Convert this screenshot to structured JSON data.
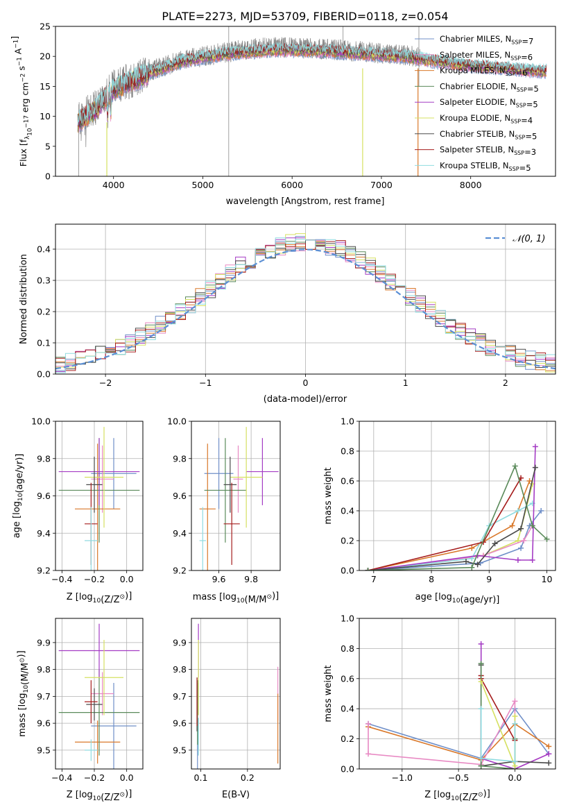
{
  "chart_data": [
    {
      "type": "line",
      "title": "PLATE=2273, MJD=53709, FIBERID=0118, z=0.054",
      "xlabel": "wavelength [Angstrom, rest frame]",
      "ylabel_parts": [
        "Flux [f",
        "λ",
        "10",
        "−17",
        " erg cm",
        "−2",
        " s",
        "−1",
        " A",
        "−1",
        "]"
      ],
      "xlim": [
        3350,
        8950
      ],
      "ylim": [
        0,
        25
      ],
      "xticks": [
        4000,
        5000,
        6000,
        7000,
        8000
      ],
      "yticks": [
        0,
        5,
        10,
        15,
        20,
        25
      ],
      "legend_position": "right",
      "series": [
        {
          "name_parts": [
            "Chabrier MILES, N",
            "SSP",
            "=7"
          ],
          "color": "#6f8fc8"
        },
        {
          "name_parts": [
            "Salpeter MILES, N",
            "SSP",
            "=6"
          ],
          "color": "#e889c3"
        },
        {
          "name_parts": [
            "Kroupa MILES, N",
            "SSP",
            "=6"
          ],
          "color": "#d9782a"
        },
        {
          "name_parts": [
            "Chabrier ELODIE, N",
            "SSP",
            "=5"
          ],
          "color": "#5a8a5a"
        },
        {
          "name_parts": [
            "Salpeter ELODIE, N",
            "SSP",
            "=5"
          ],
          "color": "#a43bc4"
        },
        {
          "name_parts": [
            "Kroupa ELODIE, N",
            "SSP",
            "=4"
          ],
          "color": "#d5e060"
        },
        {
          "name_parts": [
            "Chabrier STELIB, N",
            "SSP",
            "=5"
          ],
          "color": "#4a4a4a"
        },
        {
          "name_parts": [
            "Salpeter STELIB, N",
            "SSP",
            "=3"
          ],
          "color": "#a51c1c"
        },
        {
          "name_parts": [
            "Kroupa STELIB, N",
            "SSP",
            "=5"
          ],
          "color": "#8fdbe0"
        }
      ],
      "data_color": "#808080",
      "spectrum_continuum": {
        "x": [
          3600,
          3800,
          4000,
          4200,
          4400,
          4600,
          4800,
          5000,
          5200,
          5400,
          5600,
          5800,
          6000,
          6200,
          6400,
          6600,
          6800,
          7000,
          7200,
          7400,
          7430
        ],
        "y": [
          9.5,
          11.5,
          15.0,
          16.0,
          17.5,
          18.5,
          19.5,
          20.0,
          20.5,
          21.0,
          21.3,
          21.5,
          21.5,
          21.3,
          21.2,
          21.0,
          20.8,
          20.5,
          20.3,
          20.0,
          20.0
        ]
      },
      "model_continuum": {
        "x": [
          3600,
          3800,
          4000,
          4200,
          4400,
          4600,
          4800,
          5000,
          5200,
          5400,
          5600,
          5800,
          6000,
          6200,
          6400,
          6600,
          6800,
          7000,
          7200,
          7400,
          7600,
          7800,
          8000,
          8200,
          8400,
          8600,
          8800
        ],
        "y": [
          9.0,
          11.0,
          14.5,
          15.8,
          17.2,
          18.2,
          19.2,
          19.8,
          20.2,
          20.6,
          20.8,
          21.0,
          21.0,
          20.9,
          20.8,
          20.6,
          20.4,
          20.2,
          20.0,
          19.6,
          19.2,
          18.8,
          18.4,
          18.2,
          18.0,
          17.7,
          17.5
        ]
      }
    },
    {
      "type": "histogram",
      "xlabel": "(data-model)/error",
      "ylabel": "Normed distribution",
      "xlim": [
        -2.5,
        2.5
      ],
      "ylim": [
        0,
        0.48
      ],
      "xticks": [
        -2,
        -1,
        0,
        1,
        2
      ],
      "yticks": [
        0.0,
        0.1,
        0.2,
        0.3,
        0.4
      ],
      "legend_label": "𝒩(0, 1)",
      "legend_position": "top-right",
      "gaussian": {
        "mean": 0,
        "sigma": 1,
        "color": "#5b8fd4"
      },
      "bin_width": 0.1,
      "bin_start": -2.5,
      "series_colors": [
        "#6f8fc8",
        "#e889c3",
        "#d9782a",
        "#5a8a5a",
        "#a43bc4",
        "#d5e060",
        "#4a4a4a",
        "#a51c1c",
        "#8fdbe0"
      ]
    },
    {
      "type": "scatter",
      "panel": "age-vs-Z",
      "xlabel_parts": [
        "Z [log",
        "10",
        "(Z/Z",
        "⊙",
        ")]"
      ],
      "ylabel_parts": [
        "age  [log",
        "10",
        "(age/yr)]"
      ],
      "xlim": [
        -0.44,
        0.1
      ],
      "ylim": [
        9.2,
        10.0
      ],
      "xticks": [
        -0.4,
        -0.2,
        0.0
      ],
      "yticks": [
        9.2,
        9.4,
        9.6,
        9.8,
        10.0
      ],
      "points": [
        {
          "x": -0.08,
          "y": 9.72,
          "xerr": 0.14,
          "yerr": 0.19,
          "color": "#6f8fc8"
        },
        {
          "x": -0.15,
          "y": 9.69,
          "xerr": 0.07,
          "yerr": 0.18,
          "color": "#e889c3"
        },
        {
          "x": -0.18,
          "y": 9.53,
          "xerr": 0.14,
          "yerr": 0.35,
          "color": "#d9782a"
        },
        {
          "x": -0.17,
          "y": 9.63,
          "xerr": 0.25,
          "yerr": 0.28,
          "color": "#5a8a5a"
        },
        {
          "x": -0.17,
          "y": 9.73,
          "xerr": 0.25,
          "yerr": 0.18,
          "color": "#a43bc4"
        },
        {
          "x": -0.14,
          "y": 9.7,
          "xerr": 0.12,
          "yerr": 0.27,
          "color": "#d5e060"
        },
        {
          "x": -0.2,
          "y": 9.66,
          "xerr": 0.05,
          "yerr": 0.15,
          "color": "#4a4a4a"
        },
        {
          "x": -0.22,
          "y": 9.45,
          "xerr": 0.04,
          "yerr": 0.22,
          "color": "#a51c1c"
        },
        {
          "x": -0.22,
          "y": 9.36,
          "xerr": 0.04,
          "yerr": 0.18,
          "color": "#8fdbe0"
        }
      ]
    },
    {
      "type": "scatter",
      "panel": "age-vs-mass",
      "xlabel_parts": [
        "mass [log",
        "10",
        "(M/M",
        "⊙",
        ")]"
      ],
      "xlim": [
        9.43,
        9.98
      ],
      "ylim": [
        9.2,
        10.0
      ],
      "xticks": [
        9.6,
        9.8
      ],
      "yticks": [
        9.2,
        9.4,
        9.6,
        9.8,
        10.0
      ],
      "points": [
        {
          "x": 9.6,
          "y": 9.72,
          "xerr": 0.09,
          "yerr": 0.19,
          "color": "#6f8fc8"
        },
        {
          "x": 9.72,
          "y": 9.69,
          "xerr": 0.03,
          "yerr": 0.18,
          "color": "#e889c3"
        },
        {
          "x": 9.53,
          "y": 9.53,
          "xerr": 0.05,
          "yerr": 0.35,
          "color": "#d9782a"
        },
        {
          "x": 9.64,
          "y": 9.63,
          "xerr": 0.13,
          "yerr": 0.28,
          "color": "#5a8a5a"
        },
        {
          "x": 9.87,
          "y": 9.73,
          "xerr": 0.1,
          "yerr": 0.18,
          "color": "#a43bc4"
        },
        {
          "x": 9.77,
          "y": 9.7,
          "xerr": 0.1,
          "yerr": 0.27,
          "color": "#d5e060"
        },
        {
          "x": 9.67,
          "y": 9.66,
          "xerr": 0.04,
          "yerr": 0.15,
          "color": "#4a4a4a"
        },
        {
          "x": 9.68,
          "y": 9.45,
          "xerr": 0.05,
          "yerr": 0.22,
          "color": "#a51c1c"
        },
        {
          "x": 9.5,
          "y": 9.36,
          "xerr": 0.02,
          "yerr": 0.18,
          "color": "#8fdbe0"
        }
      ]
    },
    {
      "type": "line",
      "panel": "mass-weight-vs-age",
      "xlabel_parts": [
        "age  [log",
        "10",
        "(age/yr)]"
      ],
      "ylabel": "mass weight",
      "xlim": [
        6.75,
        10.15
      ],
      "ylim": [
        0,
        1.0
      ],
      "xticks": [
        7,
        8,
        9,
        10
      ],
      "yticks": [
        0.0,
        0.2,
        0.4,
        0.6,
        0.8,
        1.0
      ],
      "series": [
        {
          "color": "#d5e060",
          "x": [
            6.9,
            8.9,
            9.5,
            9.75
          ],
          "y": [
            0.0,
            0.1,
            0.2,
            0.58
          ]
        },
        {
          "color": "#d9782a",
          "x": [
            6.9,
            8.7,
            9.4,
            9.7
          ],
          "y": [
            0.0,
            0.15,
            0.3,
            0.6
          ]
        },
        {
          "color": "#6f8fc8",
          "x": [
            6.9,
            8.85,
            9.55,
            9.7,
            9.9
          ],
          "y": [
            0.0,
            0.05,
            0.15,
            0.3,
            0.4
          ]
        },
        {
          "color": "#e889c3",
          "x": [
            6.9,
            8.9,
            9.6,
            9.75
          ],
          "y": [
            0.0,
            0.1,
            0.2,
            0.3
          ]
        },
        {
          "color": "#8fdbe0",
          "x": [
            6.9,
            8.7,
            9.0,
            9.5,
            9.75
          ],
          "y": [
            0.0,
            0.08,
            0.3,
            0.4,
            0.45
          ]
        },
        {
          "color": "#a43bc4",
          "x": [
            6.9,
            8.8,
            9.5,
            9.75,
            9.8
          ],
          "y": [
            0.0,
            0.1,
            0.07,
            0.07,
            0.83
          ]
        },
        {
          "color": "#a51c1c",
          "x": [
            6.9,
            8.9,
            9.55
          ],
          "y": [
            0.0,
            0.19,
            0.62
          ]
        },
        {
          "color": "#4a4a4a",
          "x": [
            6.9,
            8.6,
            8.8,
            9.1,
            9.55,
            9.8
          ],
          "y": [
            0.0,
            0.06,
            0.04,
            0.18,
            0.28,
            0.69
          ]
        },
        {
          "color": "#5a8a5a",
          "x": [
            6.9,
            8.7,
            9.45,
            9.75,
            10.0
          ],
          "y": [
            0.0,
            0.02,
            0.7,
            0.3,
            0.21
          ]
        }
      ]
    },
    {
      "type": "scatter",
      "panel": "mass-vs-Z",
      "xlabel_parts": [
        "Z [log",
        "10",
        "(Z/Z",
        "⊙",
        ")]"
      ],
      "ylabel_parts": [
        "mass [log",
        "10",
        "(M/M",
        "⊙",
        ")]"
      ],
      "xlim": [
        -0.44,
        0.1
      ],
      "ylim": [
        9.43,
        9.99
      ],
      "xticks": [
        -0.4,
        -0.2,
        0.0
      ],
      "yticks": [
        9.5,
        9.6,
        9.7,
        9.8,
        9.9
      ],
      "points": [
        {
          "x": -0.08,
          "y": 9.59,
          "xerr": 0.14,
          "yerr": 0.16,
          "color": "#6f8fc8"
        },
        {
          "x": -0.15,
          "y": 9.71,
          "xerr": 0.07,
          "yerr": 0.08,
          "color": "#e889c3"
        },
        {
          "x": -0.18,
          "y": 9.53,
          "xerr": 0.14,
          "yerr": 0.08,
          "color": "#d9782a"
        },
        {
          "x": -0.17,
          "y": 9.64,
          "xerr": 0.25,
          "yerr": 0.16,
          "color": "#5a8a5a"
        },
        {
          "x": -0.17,
          "y": 9.87,
          "xerr": 0.25,
          "yerr": 0.1,
          "color": "#a43bc4"
        },
        {
          "x": -0.14,
          "y": 9.77,
          "xerr": 0.12,
          "yerr": 0.14,
          "color": "#d5e060"
        },
        {
          "x": -0.2,
          "y": 9.67,
          "xerr": 0.05,
          "yerr": 0.06,
          "color": "#4a4a4a"
        },
        {
          "x": -0.22,
          "y": 9.68,
          "xerr": 0.04,
          "yerr": 0.08,
          "color": "#a51c1c"
        },
        {
          "x": -0.22,
          "y": 9.5,
          "xerr": 0.04,
          "yerr": 0.04,
          "color": "#8fdbe0"
        }
      ]
    },
    {
      "type": "scatter",
      "panel": "mass-vs-EBV",
      "xlabel": "E(B-V)",
      "xlim": [
        0.08,
        0.27
      ],
      "ylim": [
        9.43,
        9.99
      ],
      "xticks": [
        0.1,
        0.2
      ],
      "yticks": [
        9.5,
        9.6,
        9.7,
        9.8,
        9.9
      ],
      "points": [
        {
          "x": 0.093,
          "y": 9.59,
          "yerr": 0.16,
          "color": "#6f8fc8"
        },
        {
          "x": 0.265,
          "y": 9.71,
          "yerr": 0.1,
          "color": "#e889c3"
        },
        {
          "x": 0.265,
          "y": 9.58,
          "yerr": 0.13,
          "color": "#d9782a"
        },
        {
          "x": 0.093,
          "y": 9.64,
          "yerr": 0.12,
          "color": "#5a8a5a"
        },
        {
          "x": 0.095,
          "y": 9.87,
          "yerr": 0.1,
          "color": "#a43bc4"
        },
        {
          "x": 0.095,
          "y": 9.77,
          "yerr": 0.14,
          "color": "#d5e060"
        },
        {
          "x": 0.092,
          "y": 9.67,
          "yerr": 0.1,
          "color": "#4a4a4a"
        },
        {
          "x": 0.092,
          "y": 9.68,
          "yerr": 0.09,
          "color": "#a51c1c"
        },
        {
          "x": 0.095,
          "y": 9.55,
          "yerr": 0.07,
          "color": "#8fdbe0"
        }
      ]
    },
    {
      "type": "line",
      "panel": "mass-weight-vs-Z",
      "xlabel_parts": [
        "Z [log",
        "10",
        "(Z/Z",
        "⊙",
        ")]"
      ],
      "ylabel": "mass weight",
      "xlim": [
        -1.38,
        0.36
      ],
      "ylim": [
        0,
        1.0
      ],
      "xticks": [
        -1.0,
        -0.5,
        0.0
      ],
      "yticks": [
        0.0,
        0.2,
        0.4,
        0.6,
        0.8,
        1.0
      ],
      "series": [
        {
          "color": "#6f8fc8",
          "x": [
            -1.3,
            -0.3,
            0.0,
            0.3
          ],
          "y": [
            0.3,
            0.07,
            0.4,
            0.1
          ]
        },
        {
          "color": "#d9782a",
          "x": [
            -1.3,
            -0.3,
            0.0,
            0.3
          ],
          "y": [
            0.28,
            0.06,
            0.3,
            0.15
          ]
        },
        {
          "color": "#e889c3",
          "x": [
            -1.3,
            -1.3,
            -0.3,
            0.0,
            0.0,
            0.3
          ],
          "y": [
            0.3,
            0.1,
            0.03,
            0.45,
            0.0,
            0.1
          ]
        },
        {
          "color": "#a43bc4",
          "x": [
            -0.3,
            -0.3,
            0.0,
            0.3
          ],
          "y": [
            0.83,
            0.07,
            0.0,
            0.1
          ]
        },
        {
          "color": "#a51c1c",
          "x": [
            -0.3,
            -0.3,
            0.0
          ],
          "y": [
            0.62,
            0.6,
            0.19
          ]
        },
        {
          "color": "#4a4a4a",
          "x": [
            -0.3,
            -0.3,
            0.0,
            0.3
          ],
          "y": [
            0.69,
            0.02,
            0.05,
            0.04
          ]
        },
        {
          "color": "#5a8a5a",
          "x": [
            -0.3,
            -0.3,
            0.0,
            0.0
          ],
          "y": [
            0.7,
            0.02,
            0.0,
            0.2
          ]
        },
        {
          "color": "#d5e060",
          "x": [
            -0.3,
            0.0,
            0.0
          ],
          "y": [
            0.58,
            0.02,
            0.35
          ]
        },
        {
          "color": "#8fdbe0",
          "x": [
            -0.3,
            -0.3,
            0.0,
            0.0
          ],
          "y": [
            0.4,
            0.07,
            0.05,
            0.3
          ]
        }
      ]
    }
  ]
}
